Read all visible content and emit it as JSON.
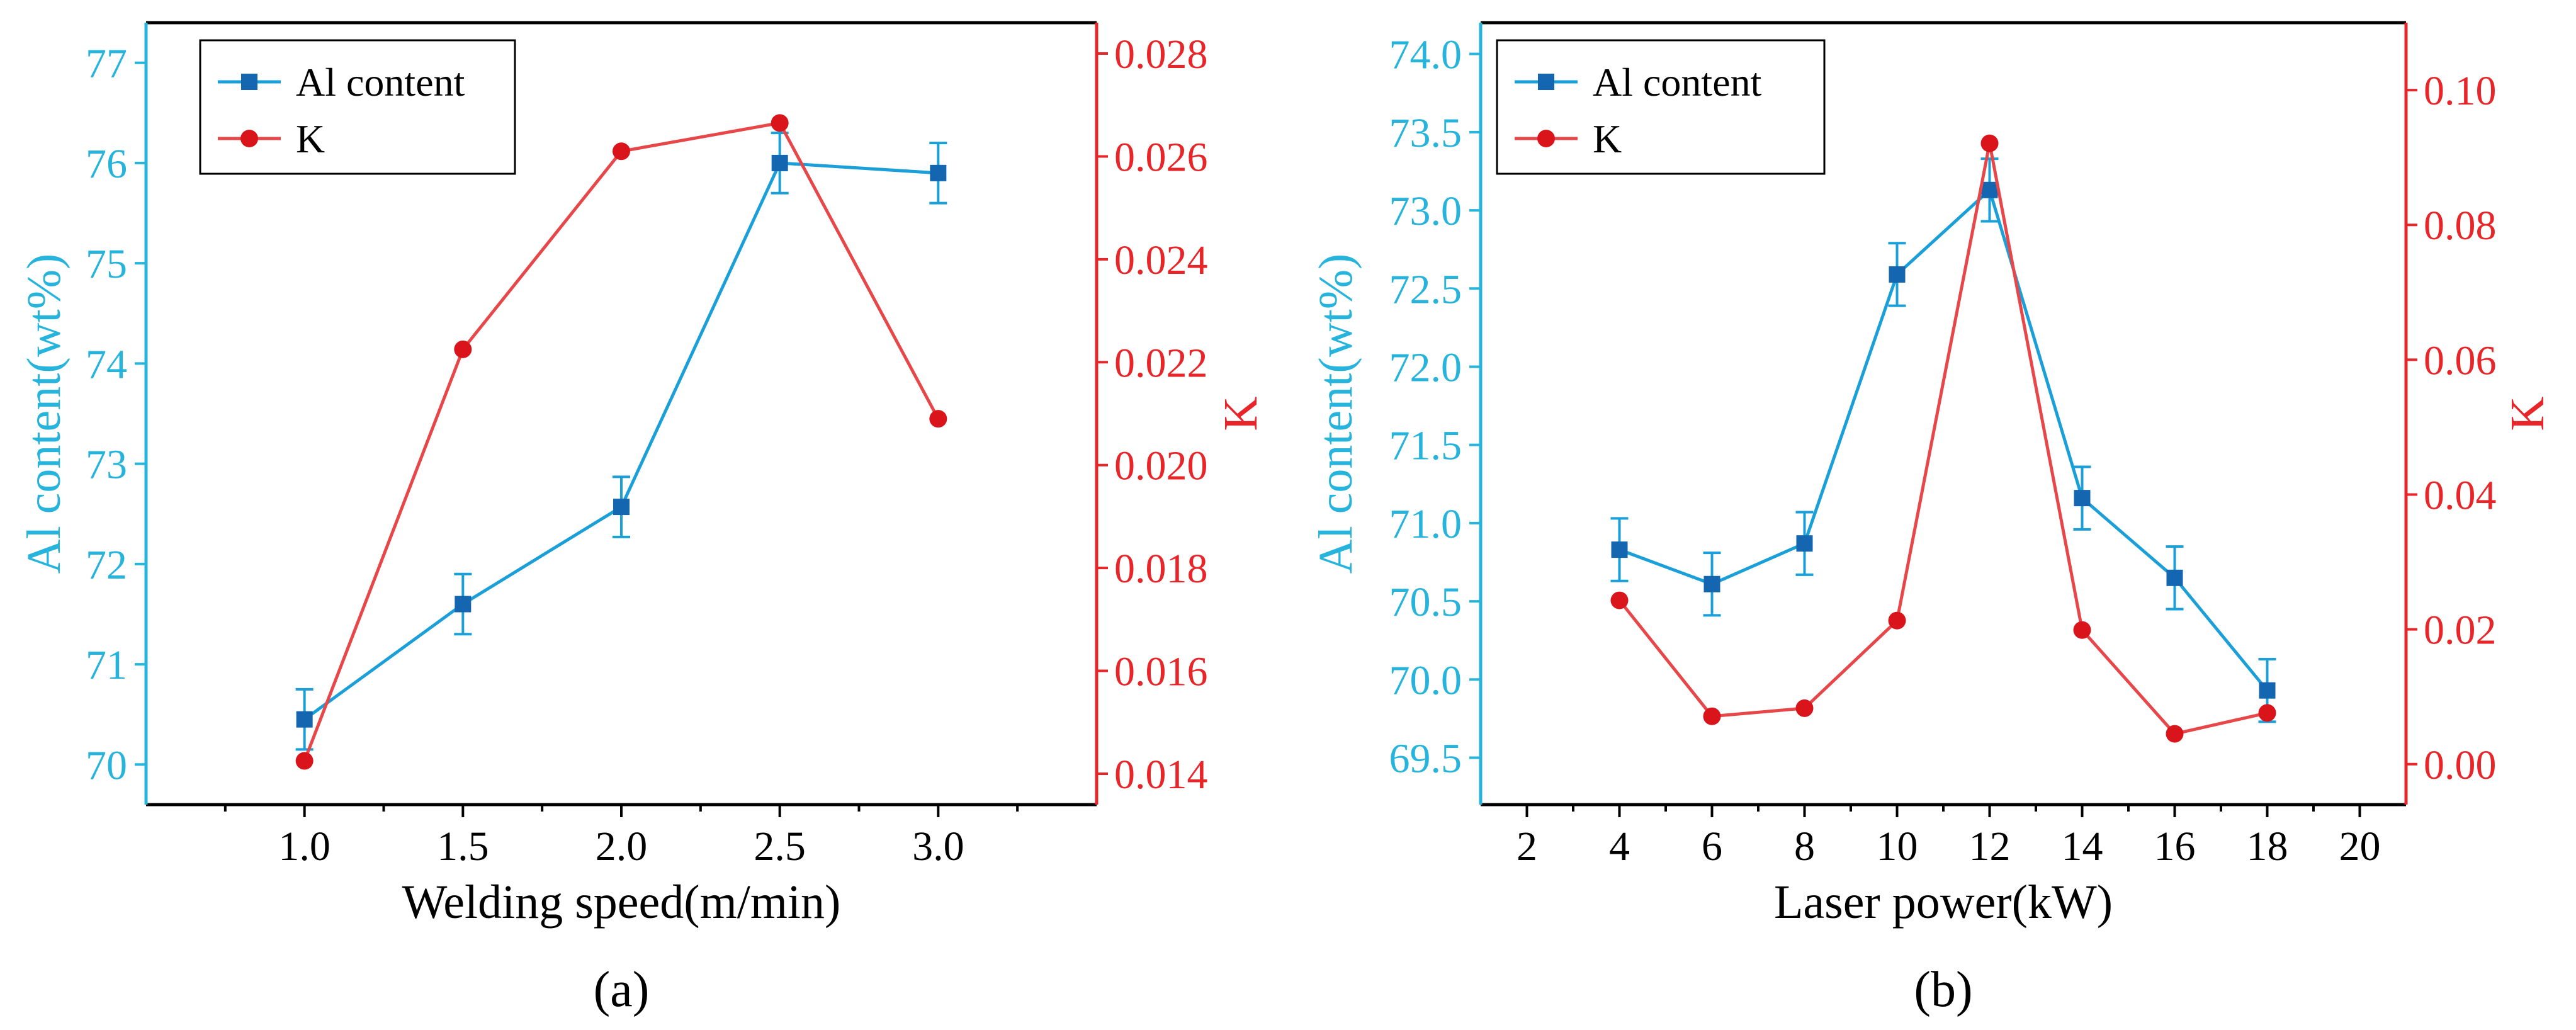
{
  "chart_data": [
    {
      "type": "line",
      "panel_label": "(a)",
      "xlabel": "Welding speed(m/min)",
      "ylabel_left": "Al content(wt%)",
      "ylabel_right": "K",
      "xlim": [
        0.5,
        3.5
      ],
      "ylim_left": [
        69.6,
        77.4
      ],
      "ylim_right": [
        0.0134,
        0.0286
      ],
      "x_ticks": [
        1.0,
        1.5,
        2.0,
        2.5,
        3.0
      ],
      "x_tick_labels": [
        "1.0",
        "1.5",
        "2.0",
        "2.5",
        "3.0"
      ],
      "x_minor_ticks": [
        0.75,
        1.25,
        1.75,
        2.25,
        2.75,
        3.25
      ],
      "left_ticks": [
        70,
        71,
        72,
        73,
        74,
        75,
        76,
        77
      ],
      "left_tick_labels": [
        "70",
        "71",
        "72",
        "73",
        "74",
        "75",
        "76",
        "77"
      ],
      "right_ticks": [
        0.014,
        0.016,
        0.018,
        0.02,
        0.022,
        0.024,
        0.026,
        0.028
      ],
      "right_tick_labels": [
        "0.014",
        "0.016",
        "0.018",
        "0.020",
        "0.022",
        "0.024",
        "0.026",
        "0.028"
      ],
      "legend": {
        "position": "top-left",
        "entries": [
          "Al content",
          "K"
        ]
      },
      "series": [
        {
          "name": "Al content",
          "axis": "left",
          "color": "#1a9fd8",
          "marker": "square",
          "x": [
            1.0,
            1.5,
            2.0,
            2.5,
            3.0
          ],
          "values": [
            70.45,
            71.6,
            72.57,
            76.0,
            75.9
          ],
          "errors": [
            0.3,
            0.3,
            0.3,
            0.3,
            0.3
          ]
        },
        {
          "name": "K",
          "axis": "right",
          "color": "#e8262a",
          "marker": "circle",
          "x": [
            1.0,
            1.5,
            2.0,
            2.5,
            3.0
          ],
          "values": [
            0.01425,
            0.02225,
            0.0261,
            0.02665,
            0.0209
          ]
        }
      ]
    },
    {
      "type": "line",
      "panel_label": "(b)",
      "xlabel": "Laser power(kW)",
      "ylabel_left": "Al content(wt%)",
      "ylabel_right": "K",
      "xlim": [
        1,
        21
      ],
      "ylim_left": [
        69.2,
        74.2
      ],
      "ylim_right": [
        -0.006,
        0.11
      ],
      "x_ticks": [
        2,
        4,
        6,
        8,
        10,
        12,
        14,
        16,
        18,
        20
      ],
      "x_tick_labels": [
        "2",
        "4",
        "6",
        "8",
        "10",
        "12",
        "14",
        "16",
        "18",
        "20"
      ],
      "x_minor_ticks": [
        3,
        5,
        7,
        9,
        11,
        13,
        15,
        17,
        19
      ],
      "left_ticks": [
        69.5,
        70.0,
        70.5,
        71.0,
        71.5,
        72.0,
        72.5,
        73.0,
        73.5,
        74.0
      ],
      "left_tick_labels": [
        "69.5",
        "70.0",
        "70.5",
        "71.0",
        "71.5",
        "72.0",
        "72.5",
        "73.0",
        "73.5",
        "74.0"
      ],
      "right_ticks": [
        0.0,
        0.02,
        0.04,
        0.06,
        0.08,
        0.1
      ],
      "right_tick_labels": [
        "0.00",
        "0.02",
        "0.04",
        "0.06",
        "0.08",
        "0.10"
      ],
      "legend": {
        "position": "top-left",
        "entries": [
          "Al content",
          "K"
        ]
      },
      "series": [
        {
          "name": "Al content",
          "axis": "left",
          "color": "#1a9fd8",
          "marker": "square",
          "x": [
            4,
            6,
            8,
            10,
            12,
            14,
            16,
            18
          ],
          "values": [
            70.83,
            70.61,
            70.87,
            72.59,
            73.13,
            71.16,
            70.65,
            69.93
          ],
          "errors": [
            0.2,
            0.2,
            0.2,
            0.2,
            0.2,
            0.2,
            0.2,
            0.2
          ]
        },
        {
          "name": "K",
          "axis": "right",
          "color": "#e8262a",
          "marker": "circle",
          "x": [
            4,
            6,
            8,
            10,
            12,
            14,
            16,
            18
          ],
          "values": [
            0.0243,
            0.0071,
            0.0083,
            0.0213,
            0.0921,
            0.0199,
            0.0045,
            0.0076
          ]
        }
      ]
    }
  ]
}
